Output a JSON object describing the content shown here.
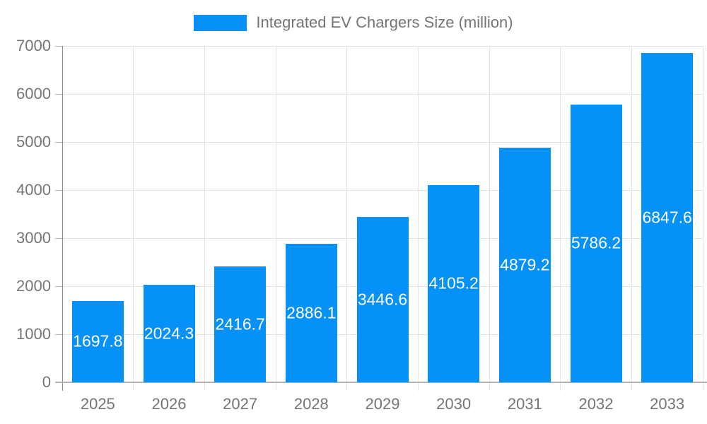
{
  "chart_data": {
    "type": "bar",
    "title": "",
    "legend": "Integrated EV Chargers Size (million)",
    "legend_position": "top-center",
    "categories": [
      "2025",
      "2026",
      "2027",
      "2028",
      "2029",
      "2030",
      "2031",
      "2032",
      "2033"
    ],
    "values": [
      1697.8,
      2024.3,
      2416.7,
      2886.1,
      3446.6,
      4105.2,
      4879.2,
      5786.2,
      6847.6
    ],
    "xlabel": "",
    "ylabel": "",
    "ylim": [
      0,
      7000
    ],
    "ytick_step": 1000,
    "ytick_labels": [
      "0",
      "1000",
      "2000",
      "3000",
      "4000",
      "5000",
      "6000",
      "7000"
    ],
    "grid": true,
    "colors": {
      "bar": "#0591f8",
      "value_label": "#ffffff",
      "axis_text": "#757575",
      "gridline": "#e3e3e3",
      "axis_line": "#b3b3b3",
      "y_axis_line": "#8a8a8a",
      "background": "#ffffff"
    }
  }
}
